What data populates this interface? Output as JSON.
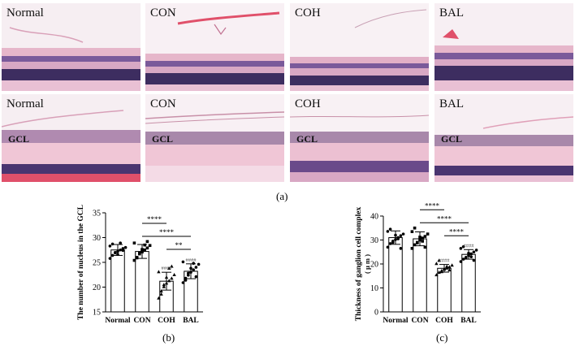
{
  "colors": {
    "tissue_pink": "#e8b4c8",
    "tissue_purple": "#6a4a8a",
    "tissue_dark": "#3a2a5a",
    "tissue_red": "#e0506a",
    "bar_fill": "#ffffff",
    "stroke": "#000000"
  },
  "micrographs": {
    "row1": [
      "Normal",
      "CON",
      "COH",
      "BAL"
    ],
    "row2": [
      "Normal",
      "CON",
      "COH",
      "BAL"
    ],
    "gcl_label": "GCL"
  },
  "captions": {
    "a": "(a)",
    "b": "(b)",
    "c": "(c)"
  },
  "chart_data": [
    {
      "type": "bar",
      "categories": [
        "Normal",
        "CON",
        "COH",
        "BAL"
      ],
      "values": [
        27.5,
        27.2,
        21.2,
        23.2
      ],
      "errors": [
        1.1,
        1.4,
        1.8,
        1.5
      ],
      "points": [
        [
          25.8,
          26.4,
          26.9,
          27.2,
          27.5,
          27.8,
          28.0,
          28.3,
          28.7,
          27.0,
          26.6,
          28.9,
          27.4
        ],
        [
          25.4,
          26.0,
          26.7,
          27.1,
          27.5,
          27.9,
          28.4,
          28.9,
          25.9,
          26.9,
          27.6,
          28.5,
          29.2
        ],
        [
          17.8,
          19.2,
          20.1,
          20.8,
          21.3,
          21.8,
          22.5,
          23.1,
          18.6,
          20.5,
          22.0,
          23.8,
          24.2
        ],
        [
          20.9,
          21.8,
          22.4,
          23.0,
          23.5,
          24.0,
          24.6,
          25.1,
          21.4,
          22.8,
          23.8,
          24.8,
          22.1
        ]
      ],
      "markers": [
        "circle",
        "square",
        "triangle",
        "circle"
      ],
      "ylabel": "The number of nucleus in the GCL",
      "ylim": [
        15,
        35
      ],
      "yticks": [
        15,
        20,
        25,
        30,
        35
      ],
      "group_annotations": [
        "",
        "",
        "####",
        "####"
      ],
      "significance": [
        {
          "from": "CON",
          "to": "COH",
          "label": "****"
        },
        {
          "from": "CON",
          "to": "BAL",
          "label": "****"
        },
        {
          "from": "COH",
          "to": "BAL",
          "label": "**"
        }
      ]
    },
    {
      "type": "bar",
      "categories": [
        "Normal",
        "CON",
        "COH",
        "BAL"
      ],
      "values": [
        31.0,
        30.5,
        18.2,
        24.0
      ],
      "errors": [
        2.8,
        2.9,
        1.6,
        2.0
      ],
      "points": [
        [
          27.0,
          28.5,
          29.5,
          30.2,
          31.0,
          31.8,
          32.5,
          33.6,
          34.5,
          29.0,
          32.0,
          30.5,
          26.5
        ],
        [
          26.5,
          28.0,
          29.0,
          30.0,
          30.8,
          31.5,
          32.5,
          33.5,
          35.0,
          28.8,
          31.2,
          29.5,
          27.0
        ],
        [
          15.5,
          16.5,
          17.2,
          17.8,
          18.3,
          18.8,
          19.5,
          20.2,
          21.5,
          16.8,
          18.0,
          19.0,
          17.5
        ],
        [
          21.0,
          22.0,
          22.8,
          23.5,
          24.2,
          25.0,
          25.8,
          26.5,
          27.2,
          22.5,
          24.5,
          23.0,
          21.5
        ]
      ],
      "markers": [
        "circle",
        "square",
        "triangle",
        "circle"
      ],
      "ylabel": "Thickness of ganglion cell complex",
      "yunit": "( μ m )",
      "ylim": [
        0,
        40
      ],
      "yticks": [
        0,
        10,
        20,
        30,
        40
      ],
      "group_annotations": [
        "",
        "",
        "####",
        "####"
      ],
      "significance": [
        {
          "from": "CON",
          "to": "COH",
          "label": "****"
        },
        {
          "from": "CON",
          "to": "BAL",
          "label": "****"
        },
        {
          "from": "COH",
          "to": "BAL",
          "label": "****"
        }
      ]
    }
  ]
}
